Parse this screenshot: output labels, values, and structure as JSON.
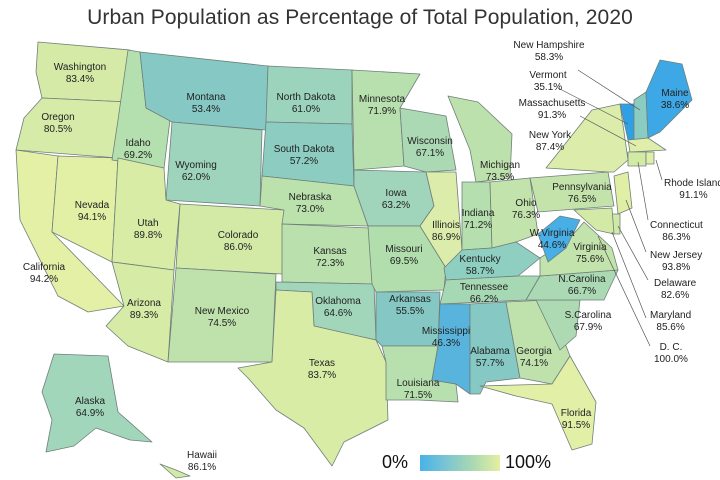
{
  "title": "Urban Population as Percentage of Total Population, 2020",
  "legend": {
    "min_label": "0%",
    "max_label": "100%",
    "color_low": "#3aa9e6",
    "color_high": "#e9f1a6"
  },
  "states": [
    {
      "id": "washington",
      "name": "Washington",
      "value": "83.4%"
    },
    {
      "id": "oregon",
      "name": "Oregon",
      "value": "80.5%"
    },
    {
      "id": "california",
      "name": "California",
      "value": "94.2%"
    },
    {
      "id": "nevada",
      "name": "Nevada",
      "value": "94.1%"
    },
    {
      "id": "idaho",
      "name": "Idaho",
      "value": "69.2%"
    },
    {
      "id": "montana",
      "name": "Montana",
      "value": "53.4%"
    },
    {
      "id": "wyoming",
      "name": "Wyoming",
      "value": "62.0%"
    },
    {
      "id": "utah",
      "name": "Utah",
      "value": "89.8%"
    },
    {
      "id": "arizona",
      "name": "Arizona",
      "value": "89.3%"
    },
    {
      "id": "colorado",
      "name": "Colorado",
      "value": "86.0%"
    },
    {
      "id": "new-mexico",
      "name": "New Mexico",
      "value": "74.5%"
    },
    {
      "id": "north-dakota",
      "name": "North Dakota",
      "value": "61.0%"
    },
    {
      "id": "south-dakota",
      "name": "South Dakota",
      "value": "57.2%"
    },
    {
      "id": "nebraska",
      "name": "Nebraska",
      "value": "73.0%"
    },
    {
      "id": "kansas",
      "name": "Kansas",
      "value": "72.3%"
    },
    {
      "id": "oklahoma",
      "name": "Oklahoma",
      "value": "64.6%"
    },
    {
      "id": "texas",
      "name": "Texas",
      "value": "83.7%"
    },
    {
      "id": "minnesota",
      "name": "Minnesota",
      "value": "71.9%"
    },
    {
      "id": "iowa",
      "name": "Iowa",
      "value": "63.2%"
    },
    {
      "id": "missouri",
      "name": "Missouri",
      "value": "69.5%"
    },
    {
      "id": "arkansas",
      "name": "Arkansas",
      "value": "55.5%"
    },
    {
      "id": "louisiana",
      "name": "Louisiana",
      "value": "71.5%"
    },
    {
      "id": "wisconsin",
      "name": "Wisconsin",
      "value": "67.1%"
    },
    {
      "id": "illinois",
      "name": "Illinois",
      "value": "86.9%"
    },
    {
      "id": "michigan",
      "name": "Michigan",
      "value": "73.5%"
    },
    {
      "id": "indiana",
      "name": "Indiana",
      "value": "71.2%"
    },
    {
      "id": "ohio",
      "name": "Ohio",
      "value": "76.3%"
    },
    {
      "id": "kentucky",
      "name": "Kentucky",
      "value": "58.7%"
    },
    {
      "id": "tennessee",
      "name": "Tennessee",
      "value": "66.2%"
    },
    {
      "id": "mississippi",
      "name": "Mississippi",
      "value": "46.3%"
    },
    {
      "id": "alabama",
      "name": "Alabama",
      "value": "57.7%"
    },
    {
      "id": "georgia",
      "name": "Georgia",
      "value": "74.1%"
    },
    {
      "id": "florida",
      "name": "Florida",
      "value": "91.5%"
    },
    {
      "id": "s-carolina",
      "name": "S.Carolina",
      "value": "67.9%"
    },
    {
      "id": "n-carolina",
      "name": "N.Carolina",
      "value": "66.7%"
    },
    {
      "id": "virginia",
      "name": "Virginia",
      "value": "75.6%"
    },
    {
      "id": "w-virginia",
      "name": "W.Virginia",
      "value": "44.6%"
    },
    {
      "id": "pennsylvania",
      "name": "Pennsylvania",
      "value": "76.5%"
    },
    {
      "id": "new-york",
      "name": "New York",
      "value": "87.4%"
    },
    {
      "id": "vermont",
      "name": "Vermont",
      "value": "35.1%"
    },
    {
      "id": "new-hampshire",
      "name": "New Hampshire",
      "value": "58.3%"
    },
    {
      "id": "maine",
      "name": "Maine",
      "value": "38.6%"
    },
    {
      "id": "massachusetts",
      "name": "Massachusetts",
      "value": "91.3%"
    },
    {
      "id": "rhode-island",
      "name": "Rhode Island",
      "value": "91.1%"
    },
    {
      "id": "connecticut",
      "name": "Connecticut",
      "value": "86.3%"
    },
    {
      "id": "new-jersey",
      "name": "New Jersey",
      "value": "93.8%"
    },
    {
      "id": "delaware",
      "name": "Delaware",
      "value": "82.6%"
    },
    {
      "id": "maryland",
      "name": "Maryland",
      "value": "85.6%"
    },
    {
      "id": "dc",
      "name": "D. C.",
      "value": "100.0%"
    },
    {
      "id": "alaska",
      "name": "Alaska",
      "value": "64.9%"
    },
    {
      "id": "hawaii",
      "name": "Hawaii",
      "value": "86.1%"
    }
  ]
}
